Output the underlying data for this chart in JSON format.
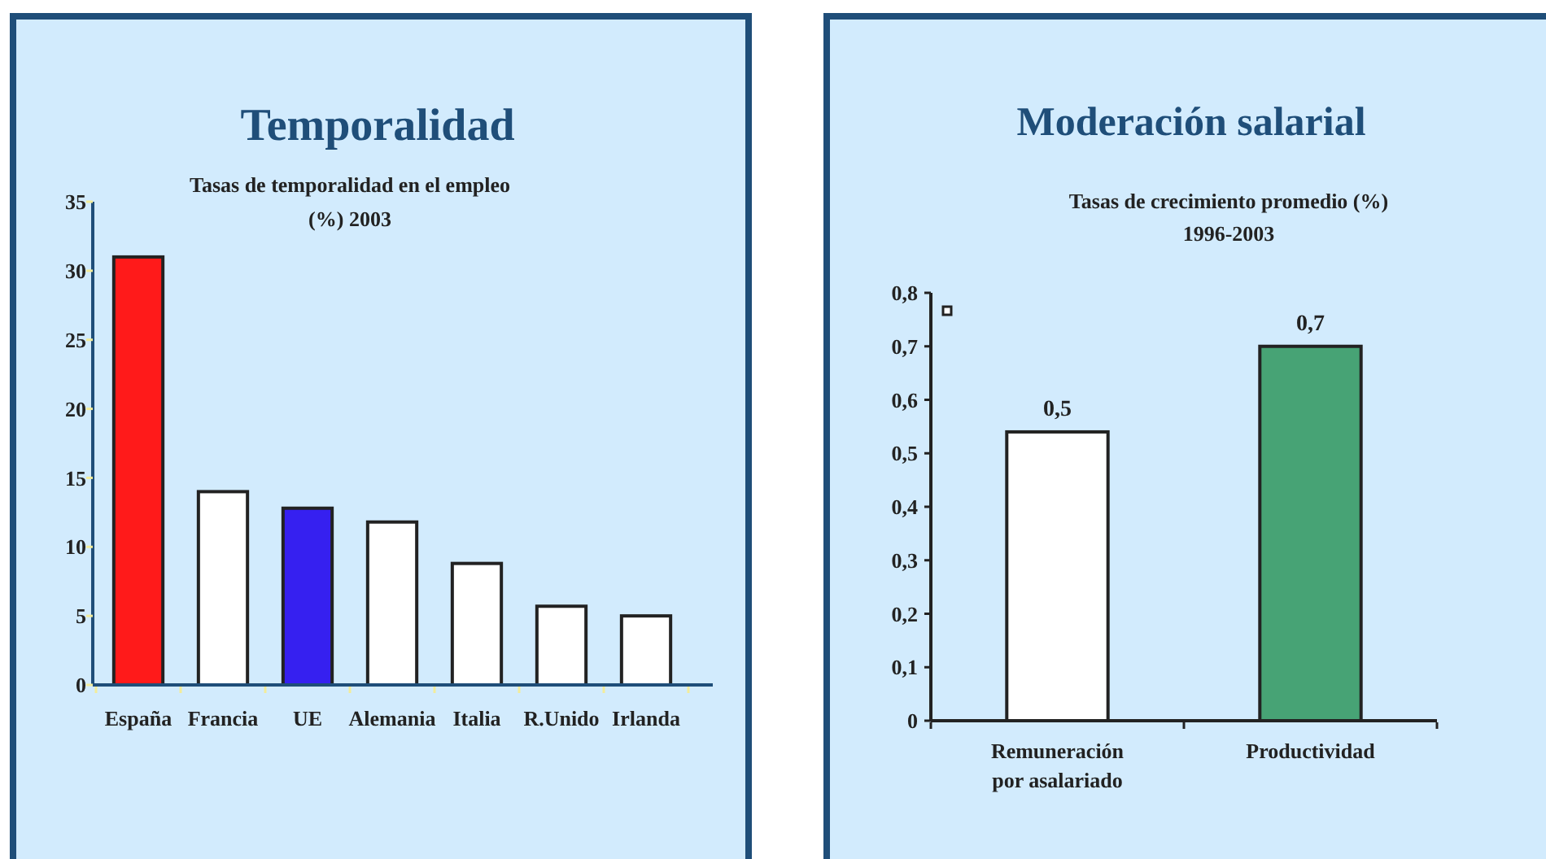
{
  "chart_data": [
    {
      "type": "bar",
      "title": "Temporalidad",
      "subtitle": "Tasas de temporalidad en el empleo\n(%) 2003",
      "categories": [
        "España",
        "Francia",
        "UE",
        "Alemania",
        "Italia",
        "R.Unido",
        "Irlanda"
      ],
      "values": [
        31.0,
        14.0,
        12.8,
        11.8,
        8.8,
        5.7,
        5.0
      ],
      "colors": [
        "#ff1a1a",
        "#ffffff",
        "#3620f0",
        "#ffffff",
        "#ffffff",
        "#ffffff",
        "#ffffff"
      ],
      "ylim": [
        0,
        35
      ],
      "yticks": [
        0,
        5,
        10,
        15,
        20,
        25,
        30,
        35
      ]
    },
    {
      "type": "bar",
      "title": "Moderación salarial",
      "subtitle": "Tasas de crecimiento promedio (%)\n1996-2003",
      "categories": [
        "Remuneración\npor asalariado",
        "Productividad"
      ],
      "values": [
        0.54,
        0.7
      ],
      "value_labels": [
        "0,5",
        "0,7"
      ],
      "colors": [
        "#ffffff",
        "#47a375"
      ],
      "ylim": [
        0,
        0.8
      ],
      "yticks": [
        0,
        {
          "value": 0.1,
          "label": "0,1"
        },
        {
          "value": 0.2,
          "label": "0,2"
        },
        {
          "value": 0.3,
          "label": "0,3"
        },
        {
          "value": 0.4,
          "label": "0,4"
        },
        {
          "value": 0.5,
          "label": "0,5"
        },
        {
          "value": 0.6,
          "label": "0,6"
        },
        {
          "value": 0.7,
          "label": "0,7"
        },
        {
          "value": 0.8,
          "label": "0,8"
        }
      ]
    }
  ]
}
